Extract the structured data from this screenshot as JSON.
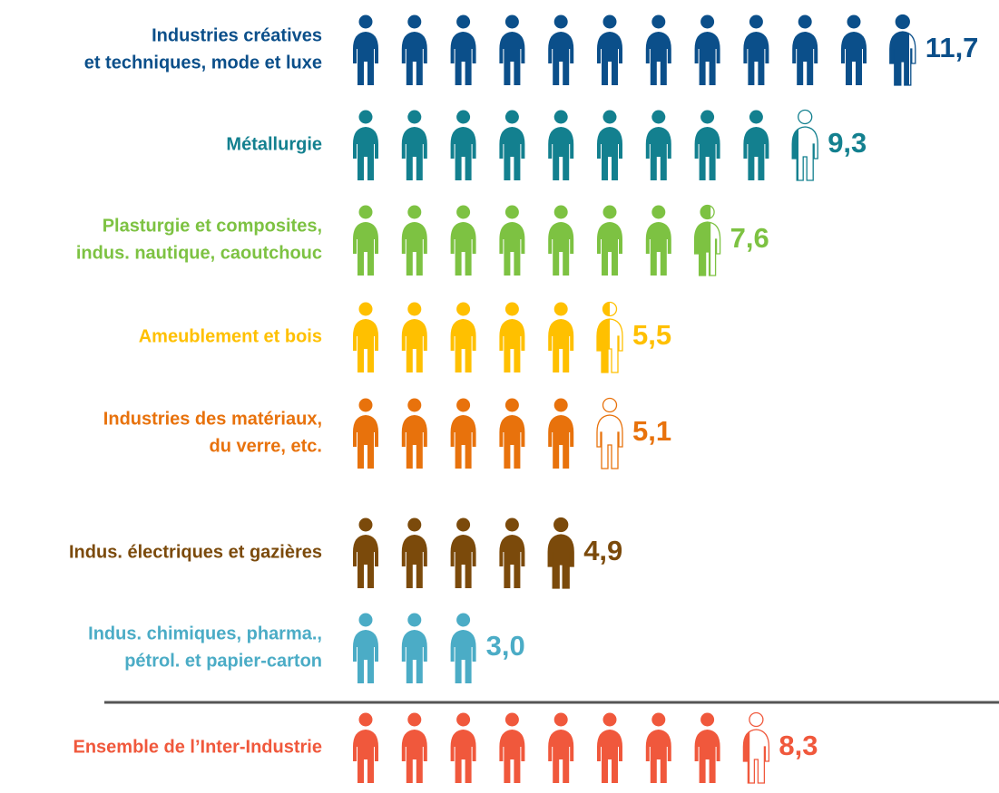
{
  "chart_data": {
    "type": "pictogram",
    "categories": [
      [
        "Industries créatives",
        "et techniques, mode et luxe"
      ],
      [
        "Métallurgie"
      ],
      [
        "Plasturgie et composites,",
        "indus. nautique, caoutchouc"
      ],
      [
        "Ameublement et bois"
      ],
      [
        "Industries des matériaux,",
        "du verre, etc."
      ],
      [
        "Indus. électriques et gazières"
      ],
      [
        "Indus. chimiques, pharma.,",
        "pétrol. et papier-carton"
      ],
      [
        "Ensemble de l’Inter-Industrie"
      ]
    ],
    "values": [
      11.7,
      9.3,
      7.6,
      5.5,
      5.1,
      4.9,
      3.0,
      8.3
    ],
    "value_labels": [
      "11,7",
      "9,3",
      "7,6",
      "5,5",
      "5,1",
      "4,9",
      "3,0",
      "8,3"
    ],
    "colors": [
      "#0b4f8a",
      "#13808f",
      "#7dc242",
      "#ffc000",
      "#e8720c",
      "#7b4a0b",
      "#4bacc6",
      "#f0583c"
    ]
  }
}
